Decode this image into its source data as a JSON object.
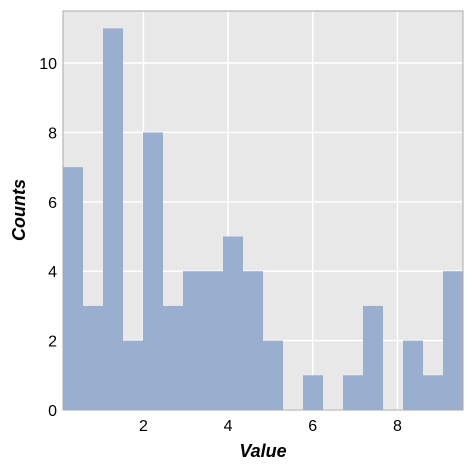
{
  "chart_data": {
    "type": "bar",
    "subtype": "histogram",
    "title": "",
    "xlabel": "Value",
    "ylabel": "Counts",
    "xlim": [
      0.1,
      9.55
    ],
    "ylim": [
      0,
      11.5
    ],
    "xticks": [
      2,
      4,
      6,
      8
    ],
    "xtick_labels": [
      "2",
      "4",
      "6",
      "8"
    ],
    "yticks": [
      0,
      2,
      4,
      6,
      8,
      10
    ],
    "ytick_labels": [
      "0",
      "2",
      "4",
      "6",
      "8",
      "10"
    ],
    "bin_start": 0.1,
    "bin_width": 0.4725,
    "counts": [
      7,
      3,
      11,
      2,
      8,
      3,
      4,
      4,
      5,
      4,
      2,
      0,
      1,
      0,
      1,
      3,
      0,
      2,
      1,
      4
    ],
    "grid": true,
    "legend": "none",
    "colors": {
      "bar": "#9aaecf",
      "plot_background": "#e8e8e8",
      "grid": "#ffffff",
      "frame": "#aaaaaa"
    }
  }
}
